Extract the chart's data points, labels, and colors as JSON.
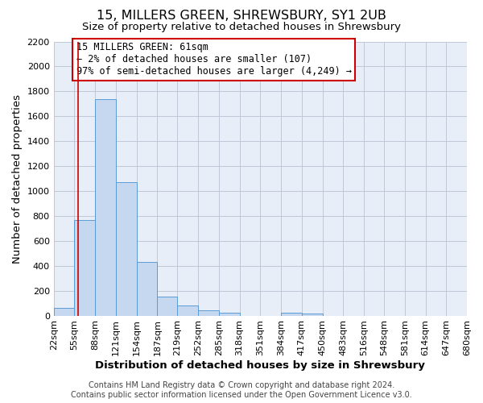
{
  "title": "15, MILLERS GREEN, SHREWSBURY, SY1 2UB",
  "subtitle": "Size of property relative to detached houses in Shrewsbury",
  "xlabel": "Distribution of detached houses by size in Shrewsbury",
  "ylabel": "Number of detached properties",
  "footer_lines": [
    "Contains HM Land Registry data © Crown copyright and database right 2024.",
    "Contains public sector information licensed under the Open Government Licence v3.0."
  ],
  "bin_edges": [
    22,
    55,
    88,
    121,
    154,
    187,
    219,
    252,
    285,
    318,
    351,
    384,
    417,
    450,
    483,
    516,
    548,
    581,
    614,
    647,
    680
  ],
  "bin_labels": [
    "22sqm",
    "55sqm",
    "88sqm",
    "121sqm",
    "154sqm",
    "187sqm",
    "219sqm",
    "252sqm",
    "285sqm",
    "318sqm",
    "351sqm",
    "384sqm",
    "417sqm",
    "450sqm",
    "483sqm",
    "516sqm",
    "548sqm",
    "581sqm",
    "614sqm",
    "647sqm",
    "680sqm"
  ],
  "bar_heights": [
    60,
    770,
    1740,
    1070,
    430,
    155,
    80,
    40,
    25,
    0,
    0,
    20,
    15,
    0,
    0,
    0,
    0,
    0,
    0,
    0
  ],
  "bar_color": "#c5d8f0",
  "bar_edge_color": "#5b9bd5",
  "grid_color": "#c0c8d8",
  "background_color": "#e8eef8",
  "ylim": [
    0,
    2200
  ],
  "yticks": [
    0,
    200,
    400,
    600,
    800,
    1000,
    1200,
    1400,
    1600,
    1800,
    2000,
    2200
  ],
  "property_value": 61,
  "red_line_x": 61,
  "annotation_line1": "15 MILLERS GREEN: 61sqm",
  "annotation_line2": "← 2% of detached houses are smaller (107)",
  "annotation_line3": "97% of semi-detached houses are larger (4,249) →",
  "annotation_box_color": "#ffffff",
  "annotation_box_edge": "#cc0000",
  "title_fontsize": 11.5,
  "subtitle_fontsize": 9.5,
  "axis_label_fontsize": 9.5,
  "tick_fontsize": 8,
  "annotation_fontsize": 8.5,
  "footer_fontsize": 7
}
